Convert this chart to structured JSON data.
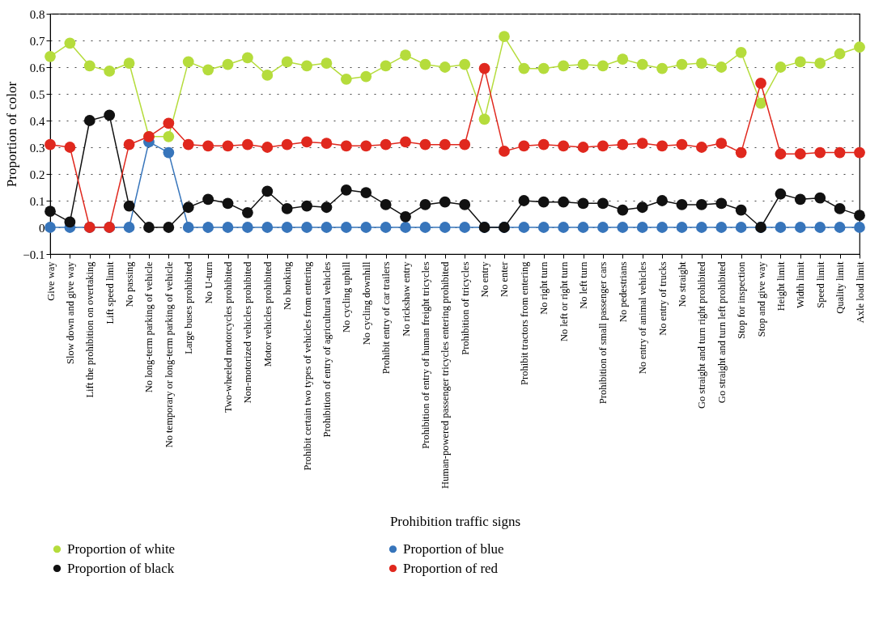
{
  "chart_data": {
    "type": "line",
    "xlabel": "Prohibition traffic signs",
    "ylabel": "Proportion of color",
    "categories": [
      "Give way",
      "Slow down and give way",
      "Lift the prohibition on overtaking",
      "Lift speed limit",
      "No passing",
      "No long-term parking of vehicle",
      "No temporary or long-term parking of vehicle",
      "Large buses prohibited",
      "No U-turn",
      "Two-wheeled motorcycles prohibited",
      "Non-motorized vehicles prohibited",
      "Motor vehicles prohibited",
      "No honking",
      "Prohibit certain two types of vehicles from entering",
      "Prohibition of entry of agricultural vehicles",
      "No cycling uphill",
      "No cycling downhill",
      "Prohibit entry of car trailers",
      "No rickshaw entry",
      "Prohibition of entry of human freight tricycles",
      "Human-powered passenger tricycles entering prohibited",
      "Prohibition of tricycles",
      "No entry",
      "No enter",
      "Prohibit tractors from entering",
      "No right turn",
      "No left or right turn",
      "No left turn",
      "Prohibition of small passenger cars",
      "No pedestrians",
      "No entry of animal vehicles",
      "No entry of trucks",
      "No straight",
      "Go straight and turn right prohibited",
      "Go straight and turn left prohibited",
      "Stop for inspection",
      "Stop and give way",
      "Height limit",
      "Width limit",
      "Speed limit",
      "Quality limit",
      "Axle load limit"
    ],
    "series": [
      {
        "name": "Proportion of white",
        "color": "#b5dc3c",
        "values": [
          0.64,
          0.69,
          0.605,
          0.585,
          0.615,
          0.34,
          0.34,
          0.62,
          0.59,
          0.61,
          0.635,
          0.57,
          0.62,
          0.605,
          0.615,
          0.555,
          0.565,
          0.605,
          0.645,
          0.61,
          0.6,
          0.61,
          0.405,
          0.715,
          0.595,
          0.595,
          0.605,
          0.61,
          0.605,
          0.63,
          0.61,
          0.595,
          0.61,
          0.615,
          0.6,
          0.655,
          0.465,
          0.6,
          0.62,
          0.615,
          0.65,
          0.675
        ]
      },
      {
        "name": "Proportion of blue",
        "color": "#3775bb",
        "values": [
          0,
          0,
          0,
          0,
          0,
          0.32,
          0.28,
          0,
          0,
          0,
          0,
          0,
          0,
          0,
          0,
          0,
          0,
          0,
          0,
          0,
          0,
          0,
          0,
          0,
          0,
          0,
          0,
          0,
          0,
          0,
          0,
          0,
          0,
          0,
          0,
          0,
          0,
          0,
          0,
          0,
          0,
          0
        ]
      },
      {
        "name": "Proportion of black",
        "color": "#111111",
        "values": [
          0.06,
          0.02,
          0.4,
          0.42,
          0.08,
          0,
          0,
          0.075,
          0.105,
          0.09,
          0.055,
          0.135,
          0.07,
          0.08,
          0.075,
          0.14,
          0.13,
          0.085,
          0.04,
          0.085,
          0.095,
          0.085,
          0,
          0,
          0.1,
          0.095,
          0.095,
          0.09,
          0.09,
          0.065,
          0.075,
          0.1,
          0.085,
          0.085,
          0.09,
          0.065,
          0,
          0.125,
          0.105,
          0.11,
          0.07,
          0.045
        ]
      },
      {
        "name": "Proportion of red",
        "color": "#e0281e",
        "values": [
          0.31,
          0.3,
          0,
          0,
          0.31,
          0.34,
          0.39,
          0.31,
          0.305,
          0.305,
          0.31,
          0.3,
          0.31,
          0.32,
          0.315,
          0.305,
          0.305,
          0.31,
          0.32,
          0.31,
          0.31,
          0.31,
          0.595,
          0.285,
          0.305,
          0.31,
          0.305,
          0.3,
          0.305,
          0.31,
          0.315,
          0.305,
          0.31,
          0.3,
          0.315,
          0.28,
          0.54,
          0.275,
          0.275,
          0.28,
          0.28,
          0.28
        ]
      }
    ],
    "ylim": [
      -0.1,
      0.8
    ],
    "yticks": [
      -0.1,
      0,
      0.1,
      0.2,
      0.3,
      0.4,
      0.5,
      0.6,
      0.7,
      0.8
    ],
    "grid": "y",
    "legend": "bottom",
    "marker": "circle",
    "line_style": "solid"
  }
}
